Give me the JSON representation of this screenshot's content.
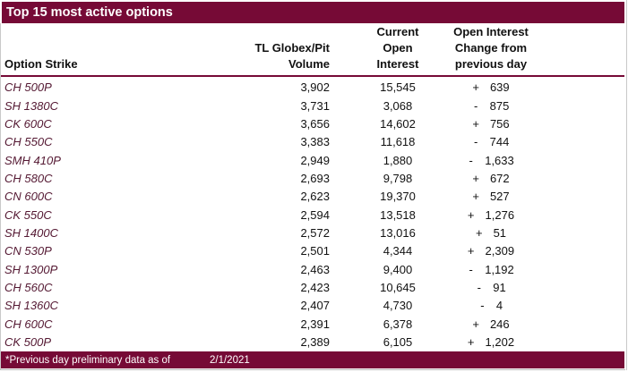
{
  "title": "Top 15 most active options",
  "colors": {
    "bar_maroon": "#760A36",
    "strike_text": "#541832",
    "header_rule": "#760A36",
    "body_text": "#111111",
    "edge_gray": "#c9c9c9"
  },
  "table": {
    "headers": {
      "option_strike": "Option Strike",
      "volume_lines": [
        "TL Globex/Pit",
        "Volume"
      ],
      "open_interest_lines": [
        "Current",
        "Open",
        "Interest"
      ],
      "change_lines": [
        "Open Interest",
        "Change from",
        "previous day"
      ]
    },
    "rows": [
      {
        "strike": "CH 500P",
        "volume": "3,902",
        "open_interest": "15,545",
        "change_sign": "+",
        "change_value": "639"
      },
      {
        "strike": "SH 1380C",
        "volume": "3,731",
        "open_interest": "3,068",
        "change_sign": "-",
        "change_value": "875"
      },
      {
        "strike": "CK 600C",
        "volume": "3,656",
        "open_interest": "14,602",
        "change_sign": "+",
        "change_value": "756"
      },
      {
        "strike": "CH 550C",
        "volume": "3,383",
        "open_interest": "11,618",
        "change_sign": "-",
        "change_value": "744"
      },
      {
        "strike": "SMH 410P",
        "volume": "2,949",
        "open_interest": "1,880",
        "change_sign": "-",
        "change_value": "1,633"
      },
      {
        "strike": "CH 580C",
        "volume": "2,693",
        "open_interest": "9,798",
        "change_sign": "+",
        "change_value": "672"
      },
      {
        "strike": "CN 600C",
        "volume": "2,623",
        "open_interest": "19,370",
        "change_sign": "+",
        "change_value": "527"
      },
      {
        "strike": "CK 550C",
        "volume": "2,594",
        "open_interest": "13,518",
        "change_sign": "+",
        "change_value": "1,276"
      },
      {
        "strike": "SH 1400C",
        "volume": "2,572",
        "open_interest": "13,016",
        "change_sign": "+",
        "change_value": "51"
      },
      {
        "strike": "CN 530P",
        "volume": "2,501",
        "open_interest": "4,344",
        "change_sign": "+",
        "change_value": "2,309"
      },
      {
        "strike": "SH 1300P",
        "volume": "2,463",
        "open_interest": "9,400",
        "change_sign": "-",
        "change_value": "1,192"
      },
      {
        "strike": "CH 560C",
        "volume": "2,423",
        "open_interest": "10,645",
        "change_sign": "-",
        "change_value": "91"
      },
      {
        "strike": "SH 1360C",
        "volume": "2,407",
        "open_interest": "4,730",
        "change_sign": "-",
        "change_value": "4"
      },
      {
        "strike": "CH 600C",
        "volume": "2,391",
        "open_interest": "6,378",
        "change_sign": "+",
        "change_value": "246"
      },
      {
        "strike": "CK 500P",
        "volume": "2,389",
        "open_interest": "6,105",
        "change_sign": "+",
        "change_value": "1,202"
      }
    ]
  },
  "footer": {
    "note": "*Previous day preliminary data as of",
    "date": "2/1/2021"
  }
}
